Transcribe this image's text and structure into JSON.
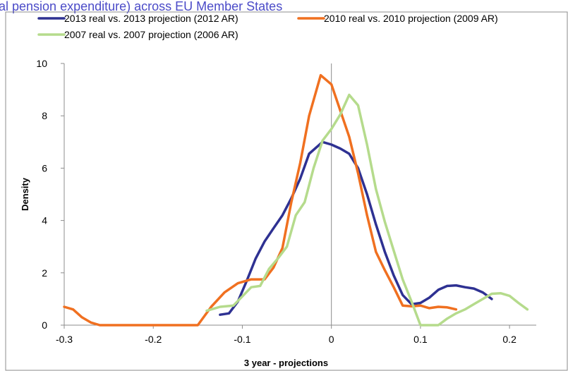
{
  "page": {
    "clipped_heading": "al pension expenditure) across EU Member States"
  },
  "chart_data": {
    "type": "line",
    "xlabel": "3 year - projections",
    "ylabel": "Density",
    "xlim": [
      -0.3,
      0.23
    ],
    "ylim": [
      0,
      10
    ],
    "x_ticks": [
      -0.3,
      -0.2,
      -0.1,
      0,
      0.1,
      0.2
    ],
    "x_tick_labels": [
      "-0.3",
      "-0.2",
      "-0.1",
      "0",
      "0.1",
      "0.2"
    ],
    "y_ticks": [
      0,
      2,
      4,
      6,
      8,
      10
    ],
    "y_tick_labels": [
      "0",
      "2",
      "4",
      "6",
      "8",
      "10"
    ],
    "vertical_gridline_x": 0,
    "legend_position": "top",
    "series": [
      {
        "name": "2013 real vs. 2013 projection (2012 AR)",
        "color": "#2e3192",
        "points": [
          [
            -0.125,
            0.4
          ],
          [
            -0.115,
            0.45
          ],
          [
            -0.105,
            0.9
          ],
          [
            -0.095,
            1.7
          ],
          [
            -0.085,
            2.55
          ],
          [
            -0.075,
            3.2
          ],
          [
            -0.065,
            3.7
          ],
          [
            -0.055,
            4.2
          ],
          [
            -0.045,
            4.85
          ],
          [
            -0.035,
            5.6
          ],
          [
            -0.025,
            6.55
          ],
          [
            -0.01,
            7.0
          ],
          [
            0.0,
            6.9
          ],
          [
            0.01,
            6.75
          ],
          [
            0.02,
            6.55
          ],
          [
            0.03,
            6.0
          ],
          [
            0.04,
            5.0
          ],
          [
            0.05,
            3.85
          ],
          [
            0.06,
            2.8
          ],
          [
            0.07,
            1.9
          ],
          [
            0.08,
            1.15
          ],
          [
            0.09,
            0.8
          ],
          [
            0.1,
            0.85
          ],
          [
            0.11,
            1.05
          ],
          [
            0.12,
            1.35
          ],
          [
            0.13,
            1.5
          ],
          [
            0.14,
            1.52
          ],
          [
            0.15,
            1.45
          ],
          [
            0.16,
            1.4
          ],
          [
            0.17,
            1.25
          ],
          [
            0.18,
            1.0
          ]
        ]
      },
      {
        "name": "2010 real vs. 2010 projection (2009 AR)",
        "color": "#f07020",
        "points": [
          [
            -0.3,
            0.7
          ],
          [
            -0.29,
            0.6
          ],
          [
            -0.28,
            0.3
          ],
          [
            -0.27,
            0.1
          ],
          [
            -0.26,
            0.0
          ],
          [
            -0.15,
            0.0
          ],
          [
            -0.135,
            0.7
          ],
          [
            -0.12,
            1.25
          ],
          [
            -0.105,
            1.6
          ],
          [
            -0.09,
            1.75
          ],
          [
            -0.075,
            1.75
          ],
          [
            -0.065,
            2.2
          ],
          [
            -0.055,
            2.95
          ],
          [
            -0.045,
            4.7
          ],
          [
            -0.035,
            6.2
          ],
          [
            -0.025,
            8.0
          ],
          [
            -0.012,
            9.55
          ],
          [
            0.0,
            9.2
          ],
          [
            0.01,
            8.2
          ],
          [
            0.02,
            7.2
          ],
          [
            0.03,
            5.8
          ],
          [
            0.04,
            4.2
          ],
          [
            0.05,
            2.8
          ],
          [
            0.06,
            2.1
          ],
          [
            0.07,
            1.45
          ],
          [
            0.08,
            0.75
          ],
          [
            0.09,
            0.72
          ],
          [
            0.1,
            0.75
          ],
          [
            0.11,
            0.65
          ],
          [
            0.12,
            0.7
          ],
          [
            0.13,
            0.68
          ],
          [
            0.14,
            0.6
          ]
        ]
      },
      {
        "name": "2007 real vs. 2007 projection (2006 AR)",
        "color": "#b5db8c",
        "points": [
          [
            -0.14,
            0.55
          ],
          [
            -0.125,
            0.7
          ],
          [
            -0.11,
            0.75
          ],
          [
            -0.1,
            1.1
          ],
          [
            -0.09,
            1.45
          ],
          [
            -0.08,
            1.5
          ],
          [
            -0.07,
            2.15
          ],
          [
            -0.06,
            2.55
          ],
          [
            -0.05,
            3.0
          ],
          [
            -0.04,
            4.2
          ],
          [
            -0.03,
            4.7
          ],
          [
            -0.02,
            6.0
          ],
          [
            -0.01,
            7.05
          ],
          [
            0.0,
            7.5
          ],
          [
            0.01,
            8.05
          ],
          [
            0.02,
            8.8
          ],
          [
            0.03,
            8.4
          ],
          [
            0.04,
            6.9
          ],
          [
            0.05,
            5.2
          ],
          [
            0.06,
            3.95
          ],
          [
            0.07,
            2.85
          ],
          [
            0.08,
            1.75
          ],
          [
            0.09,
            0.9
          ],
          [
            0.1,
            0.0
          ],
          [
            0.12,
            0.0
          ],
          [
            0.13,
            0.25
          ],
          [
            0.14,
            0.45
          ],
          [
            0.15,
            0.6
          ],
          [
            0.16,
            0.8
          ],
          [
            0.17,
            1.0
          ],
          [
            0.18,
            1.2
          ],
          [
            0.19,
            1.22
          ],
          [
            0.2,
            1.12
          ],
          [
            0.21,
            0.85
          ],
          [
            0.22,
            0.6
          ]
        ]
      }
    ]
  }
}
